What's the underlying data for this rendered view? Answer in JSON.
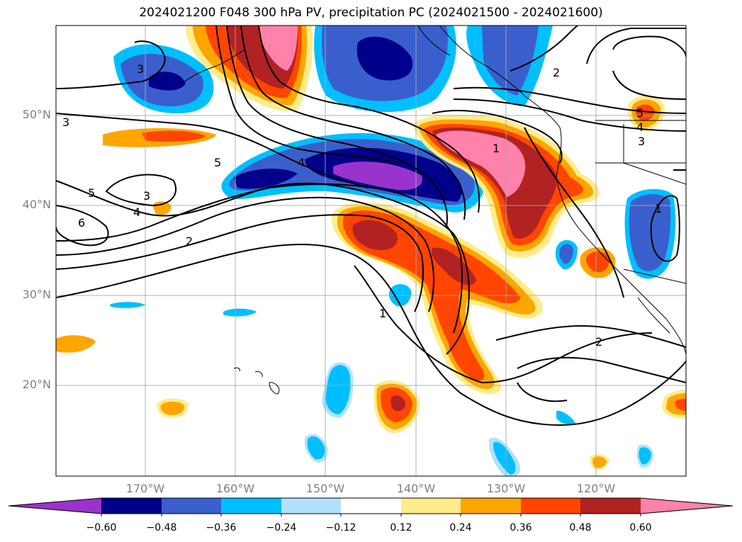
{
  "title": "2024021200 F048 300 hPa PV, precipitation PC (2024021500 - 2024021600)",
  "map": {
    "lat_labels": [
      "50°N",
      "40°N",
      "30°N",
      "20°N"
    ],
    "lon_labels": [
      "170°W",
      "160°W",
      "150°W",
      "140°W",
      "130°W",
      "120°W"
    ],
    "contour_labels": [
      "6",
      "5",
      "5",
      "5",
      "4",
      "4",
      "4",
      "3",
      "3",
      "3",
      "3",
      "2",
      "2",
      "2",
      "1",
      "1",
      "1"
    ],
    "colors": {
      "lt-0.60": "#9933cc",
      "-0.60_-0.48": "#00008b",
      "-0.48_-0.36": "#3a5fcd",
      "-0.36_-0.24": "#00bfff",
      "-0.24_-0.12": "#b0e2ff",
      "-0.12_0.12": "#ffffff",
      "0.12_0.24": "#ffec8b",
      "0.24_0.36": "#ffa500",
      "0.36_0.48": "#ff4500",
      "0.48_0.60": "#b22222",
      "gt-0.60": "#ff82ab"
    }
  },
  "colorbar": {
    "labels": [
      "−0.60",
      "−0.48",
      "−0.36",
      "−0.24",
      "−0.12",
      "0.12",
      "0.24",
      "0.36",
      "0.48",
      "0.60"
    ]
  }
}
